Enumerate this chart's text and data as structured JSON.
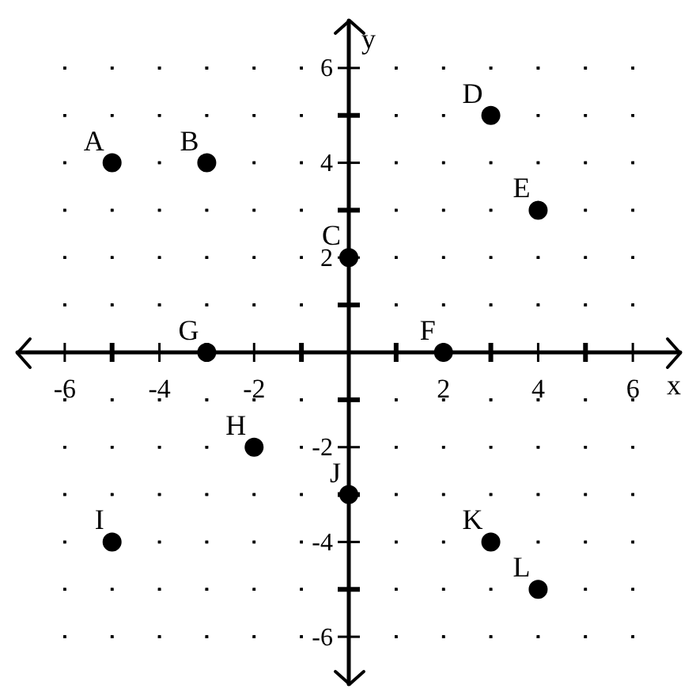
{
  "chart_data": {
    "type": "scatter",
    "xlabel": "x",
    "ylabel": "y",
    "x": [
      -5,
      -3,
      0,
      3,
      4,
      2,
      -3,
      -2,
      -5,
      0,
      3,
      4
    ],
    "values": [
      4,
      4,
      2,
      5,
      3,
      0,
      0,
      -2,
      -4,
      -3,
      -4,
      -5
    ],
    "color": "#000000",
    "marker": "circle",
    "grid": true,
    "legend": false,
    "xlim": [
      -7,
      7
    ],
    "ylim": [
      -7,
      7
    ],
    "xticks": [
      -6,
      {
        "value": -5,
        "label": null
      },
      -4,
      {
        "value": -3,
        "label": null
      },
      -2,
      {
        "value": -1,
        "label": null
      },
      {
        "value": 1,
        "label": null
      },
      2,
      {
        "value": 3,
        "label": null
      },
      4,
      {
        "value": 5,
        "label": null
      },
      6
    ],
    "yticks": [
      -6,
      {
        "value": -5,
        "label": null
      },
      -4,
      {
        "value": -3,
        "label": null
      },
      -2,
      {
        "value": -1,
        "label": null
      },
      {
        "value": 1,
        "label": null
      },
      2,
      {
        "value": 3,
        "label": null
      },
      4,
      {
        "value": 5,
        "label": null
      },
      6
    ],
    "annotations": [
      {
        "text": "A",
        "x": -5,
        "y": 4
      },
      {
        "text": "B",
        "x": -3,
        "y": 4
      },
      {
        "text": "C",
        "x": 0,
        "y": 2
      },
      {
        "text": "D",
        "x": 3,
        "y": 5
      },
      {
        "text": "E",
        "x": 4,
        "y": 3
      },
      {
        "text": "F",
        "x": 2,
        "y": 0
      },
      {
        "text": "G",
        "x": -3,
        "y": 0
      },
      {
        "text": "H",
        "x": -2,
        "y": -2
      },
      {
        "text": "I",
        "x": -5,
        "y": -4
      },
      {
        "text": "J",
        "x": 0,
        "y": -3
      },
      {
        "text": "K",
        "x": 3,
        "y": -4
      },
      {
        "text": "L",
        "x": 4,
        "y": -5
      }
    ]
  }
}
